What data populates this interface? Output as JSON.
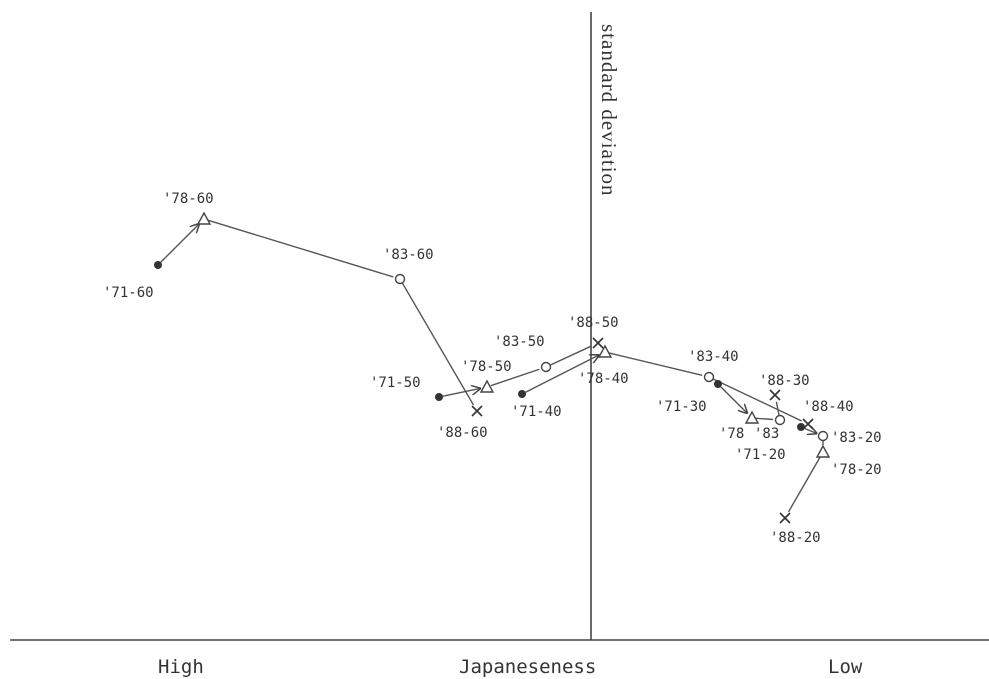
{
  "chart_data": {
    "type": "scatter",
    "title": "",
    "xlabel": "Japaneseness",
    "x_left_label": "High",
    "x_right_label": "Low",
    "ylabel": "standard deviation",
    "markers": {
      "1971": "filled-circle",
      "1978": "triangle",
      "1983": "open-circle",
      "1988": "cross"
    },
    "points": [
      {
        "id": "71-60",
        "year": 1971,
        "label": "'71-60"
      },
      {
        "id": "78-60",
        "year": 1978,
        "label": "'78-60"
      },
      {
        "id": "83-60",
        "year": 1983,
        "label": "'83-60"
      },
      {
        "id": "88-60",
        "year": 1988,
        "label": "'88-60"
      },
      {
        "id": "71-50",
        "year": 1971,
        "label": "'71-50"
      },
      {
        "id": "78-50",
        "year": 1978,
        "label": "'78-50"
      },
      {
        "id": "83-50",
        "year": 1983,
        "label": "'83-50"
      },
      {
        "id": "88-50",
        "year": 1988,
        "label": "'88-50"
      },
      {
        "id": "71-40",
        "year": 1971,
        "label": "'71-40"
      },
      {
        "id": "78-40",
        "year": 1978,
        "label": "'78-40"
      },
      {
        "id": "83-40",
        "year": 1983,
        "label": "'83-40"
      },
      {
        "id": "88-40",
        "year": 1988,
        "label": "'88-40"
      },
      {
        "id": "71-30",
        "year": 1971,
        "label": "'71-30"
      },
      {
        "id": "78-30",
        "year": 1978,
        "label": "'78"
      },
      {
        "id": "83-30",
        "year": 1983,
        "label": "'83"
      },
      {
        "id": "88-30",
        "year": 1988,
        "label": "'88-30"
      },
      {
        "id": "71-20",
        "year": 1971,
        "label": "'71-20"
      },
      {
        "id": "83-20",
        "year": 1983,
        "label": "'83-20"
      },
      {
        "id": "78-20",
        "year": 1978,
        "label": "'78-20"
      },
      {
        "id": "88-20",
        "year": 1988,
        "label": "'88-20"
      }
    ],
    "paths": [
      [
        "71-60",
        "78-60",
        "83-60",
        "88-60"
      ],
      [
        "71-50",
        "78-50",
        "83-50",
        "88-50"
      ],
      [
        "71-40",
        "78-40",
        "83-40",
        "88-40"
      ],
      [
        "71-30",
        "78-30",
        "83-30",
        "88-30"
      ],
      [
        "71-20",
        "83-20",
        "78-20",
        "88-20"
      ]
    ]
  }
}
